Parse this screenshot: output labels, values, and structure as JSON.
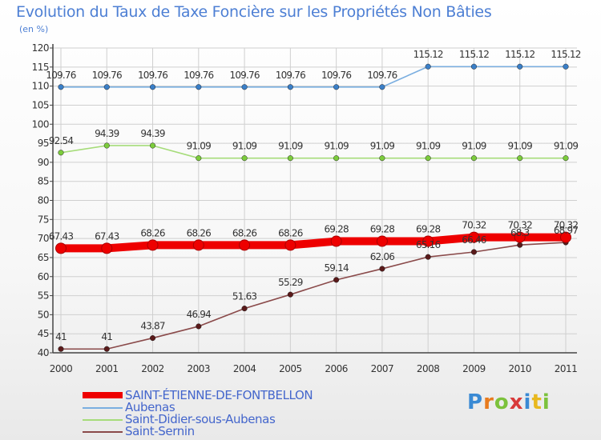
{
  "title": "Evolution du Taux de Taxe Foncière sur les Propriétés Non Bâties",
  "unit_label": "(en %)",
  "logo_text": "Proxiti",
  "colors": {
    "title": "#4d7fd4",
    "grid": "#cfcfcf",
    "axis": "#444444"
  },
  "chart_data": {
    "type": "line",
    "x": [
      "2000",
      "2001",
      "2002",
      "2003",
      "2004",
      "2005",
      "2006",
      "2007",
      "2008",
      "2009",
      "2010",
      "2011"
    ],
    "ylim": [
      40,
      120
    ],
    "yticks": [
      40,
      45,
      50,
      55,
      60,
      65,
      70,
      75,
      80,
      85,
      90,
      95,
      100,
      105,
      110,
      115,
      120
    ],
    "grid": true,
    "legend_position": "bottom-left",
    "series": [
      {
        "name": "SAINT-ÉTIENNE-DE-FONTBELLON",
        "color": "#ee0000",
        "marker_color": "#ee0000",
        "emphasis": true,
        "values": [
          67.43,
          67.43,
          68.26,
          68.26,
          68.26,
          68.26,
          69.28,
          69.28,
          69.28,
          70.32,
          70.32,
          70.32
        ],
        "labels": [
          "67.43",
          "67.43",
          "68.26",
          "68.26",
          "68.26",
          "68.26",
          "69.28",
          "69.28",
          "69.28",
          "70.32",
          "70.32",
          "70.32"
        ]
      },
      {
        "name": "Aubenas",
        "color": "#7aaee0",
        "marker_color": "#3a7fc8",
        "emphasis": false,
        "values": [
          109.76,
          109.76,
          109.76,
          109.76,
          109.76,
          109.76,
          109.76,
          109.76,
          115.12,
          115.12,
          115.12,
          115.12
        ],
        "labels": [
          "109.76",
          "109.76",
          "109.76",
          "109.76",
          "109.76",
          "109.76",
          "109.76",
          "109.76",
          "115.12",
          "115.12",
          "115.12",
          "115.12"
        ]
      },
      {
        "name": "Saint-Didier-sous-Aubenas",
        "color": "#a6dc7a",
        "marker_color": "#7ccc3c",
        "emphasis": false,
        "values": [
          92.54,
          94.39,
          94.39,
          91.09,
          91.09,
          91.09,
          91.09,
          91.09,
          91.09,
          91.09,
          91.09,
          91.09
        ],
        "labels": [
          "92.54",
          "94.39",
          "94.39",
          "91.09",
          "91.09",
          "91.09",
          "91.09",
          "91.09",
          "91.09",
          "91.09",
          "91.09",
          "91.09"
        ]
      },
      {
        "name": "Saint-Sernin",
        "color": "#8a4a4a",
        "marker_color": "#5a1a1a",
        "emphasis": false,
        "values": [
          41,
          41,
          43.87,
          46.94,
          51.63,
          55.29,
          59.14,
          62.06,
          65.16,
          66.46,
          68.3,
          68.97
        ],
        "labels": [
          "41",
          "41",
          "43.87",
          "46.94",
          "51.63",
          "55.29",
          "59.14",
          "62.06",
          "65.16",
          "66.46",
          "68.3",
          "68.97"
        ]
      }
    ]
  }
}
